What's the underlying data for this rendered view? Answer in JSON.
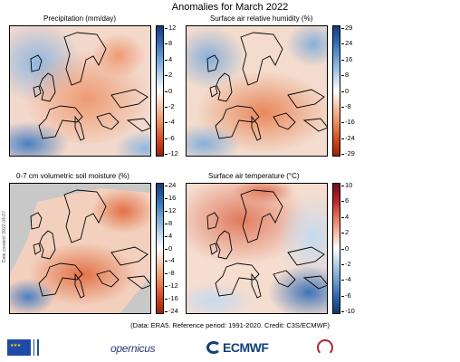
{
  "title": "Anomalies for March 2022",
  "credit": "(Data: ERA5.  Reference period: 1991-2020.  Credit: C3S/ECMWF)",
  "side_note": "Date created: 2022-04-07",
  "logos": {
    "copernicus": "opernicus",
    "ecmwf": "ECMWF"
  },
  "panels": [
    {
      "title": "Precipitation (mm/day)",
      "ticks": [
        "12",
        "8",
        "4",
        "2",
        "0",
        "-2",
        "-4",
        "-6",
        "-12"
      ],
      "palette": "brown-blue"
    },
    {
      "title": "Surface air relative humidity (%)",
      "ticks": [
        "29",
        "24",
        "16",
        "8",
        "0",
        "-8",
        "-16",
        "-24",
        "-29"
      ],
      "palette": "brown-blue"
    },
    {
      "title": "0-7 cm volumetric soil moisture (%)",
      "ticks": [
        "24",
        "16",
        "12",
        "8",
        "4",
        "0",
        "-4",
        "-8",
        "-12",
        "-16",
        "-24"
      ],
      "palette": "brown-blue"
    },
    {
      "title": "Surface air temperature (°C)",
      "ticks": [
        "10",
        "6",
        "4",
        "2",
        "0",
        "-2",
        "-4",
        "-6",
        "-10"
      ],
      "palette": "red-blue"
    }
  ],
  "colors": {
    "brown_blue": [
      "#163a7a",
      "#2f6db3",
      "#6fa2d3",
      "#b5d2ea",
      "#ffffff",
      "#f6c3a6",
      "#ee8c5c",
      "#d44a1c",
      "#9a2306"
    ],
    "red_blue": [
      "#6e0f17",
      "#b8202c",
      "#e46e58",
      "#f7b89e",
      "#ffffff",
      "#b4cde6",
      "#6b9fce",
      "#2e65ae",
      "#13376f"
    ],
    "land_mask": "#c8c8c8"
  }
}
